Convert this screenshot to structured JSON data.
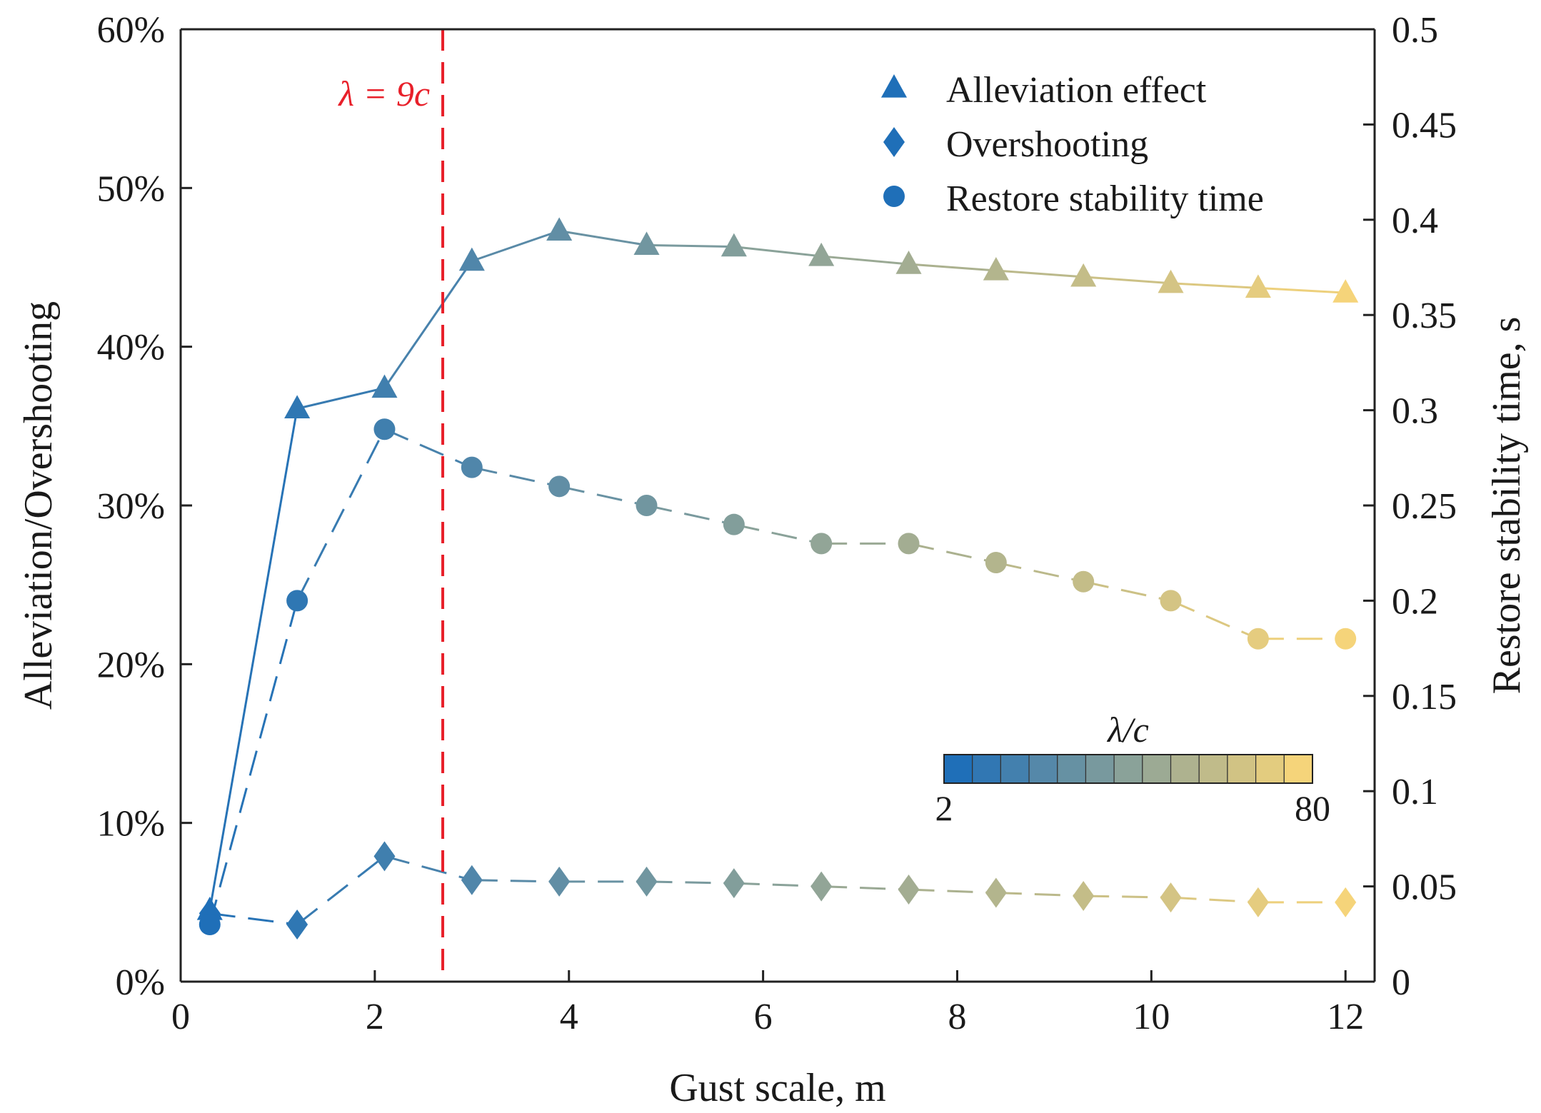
{
  "chart_data": {
    "type": "line",
    "xlabel": "Gust scale, m",
    "ylabel_left": "Alleviation/Overshooting",
    "ylabel_right": "Restore stability time, s",
    "xlim": [
      0,
      12.3
    ],
    "ylim_left": [
      0,
      60
    ],
    "ylim_right": [
      0,
      0.5
    ],
    "x_ticks": [
      0,
      2,
      4,
      6,
      8,
      10,
      12
    ],
    "x_tick_labels": [
      "0",
      "2",
      "4",
      "6",
      "8",
      "10",
      "12"
    ],
    "y_left_ticks": [
      0,
      10,
      20,
      30,
      40,
      50,
      60
    ],
    "y_left_tick_labels": [
      "0%",
      "10%",
      "20%",
      "30%",
      "40%",
      "50%",
      "60%"
    ],
    "y_right_ticks": [
      0,
      0.05,
      0.1,
      0.15,
      0.2,
      0.25,
      0.3,
      0.35,
      0.4,
      0.45,
      0.5
    ],
    "y_right_tick_labels": [
      "0",
      "0.05",
      "0.1",
      "0.15",
      "0.2",
      "0.25",
      "0.3",
      "0.35",
      "0.4",
      "0.45",
      "0.5"
    ],
    "x": [
      0.3,
      1.2,
      2.1,
      3.0,
      3.9,
      4.8,
      5.7,
      6.6,
      7.5,
      8.4,
      9.3,
      10.2,
      11.1,
      12.0
    ],
    "series": [
      {
        "name": "Alleviation effect",
        "marker": "triangle",
        "line": "solid",
        "axis": "left",
        "values": [
          4.5,
          36.1,
          37.4,
          45.4,
          47.3,
          46.4,
          46.3,
          45.7,
          45.2,
          44.8,
          44.4,
          44.0,
          43.7,
          43.4
        ]
      },
      {
        "name": "Overshooting",
        "marker": "diamond",
        "line": "dashed",
        "axis": "left",
        "values": [
          4.3,
          3.6,
          7.9,
          6.4,
          6.3,
          6.3,
          6.2,
          6.0,
          5.8,
          5.6,
          5.4,
          5.3,
          5.0,
          5.0
        ]
      },
      {
        "name": "Restore stability time",
        "marker": "circle",
        "line": "dashed",
        "axis": "right",
        "values": [
          0.03,
          0.2,
          0.29,
          0.27,
          0.26,
          0.25,
          0.24,
          0.23,
          0.23,
          0.22,
          0.21,
          0.2,
          0.18,
          0.18
        ]
      }
    ],
    "reference_line": {
      "x": 2.7,
      "label": "λ = 9c",
      "color": "#e8202a"
    },
    "colorbar": {
      "title": "λ/c",
      "min_label": "2",
      "max_label": "80",
      "color_low": "#1f6fb8",
      "color_high": "#f5d47a",
      "segments": 13
    },
    "legend_position": "top-right"
  }
}
